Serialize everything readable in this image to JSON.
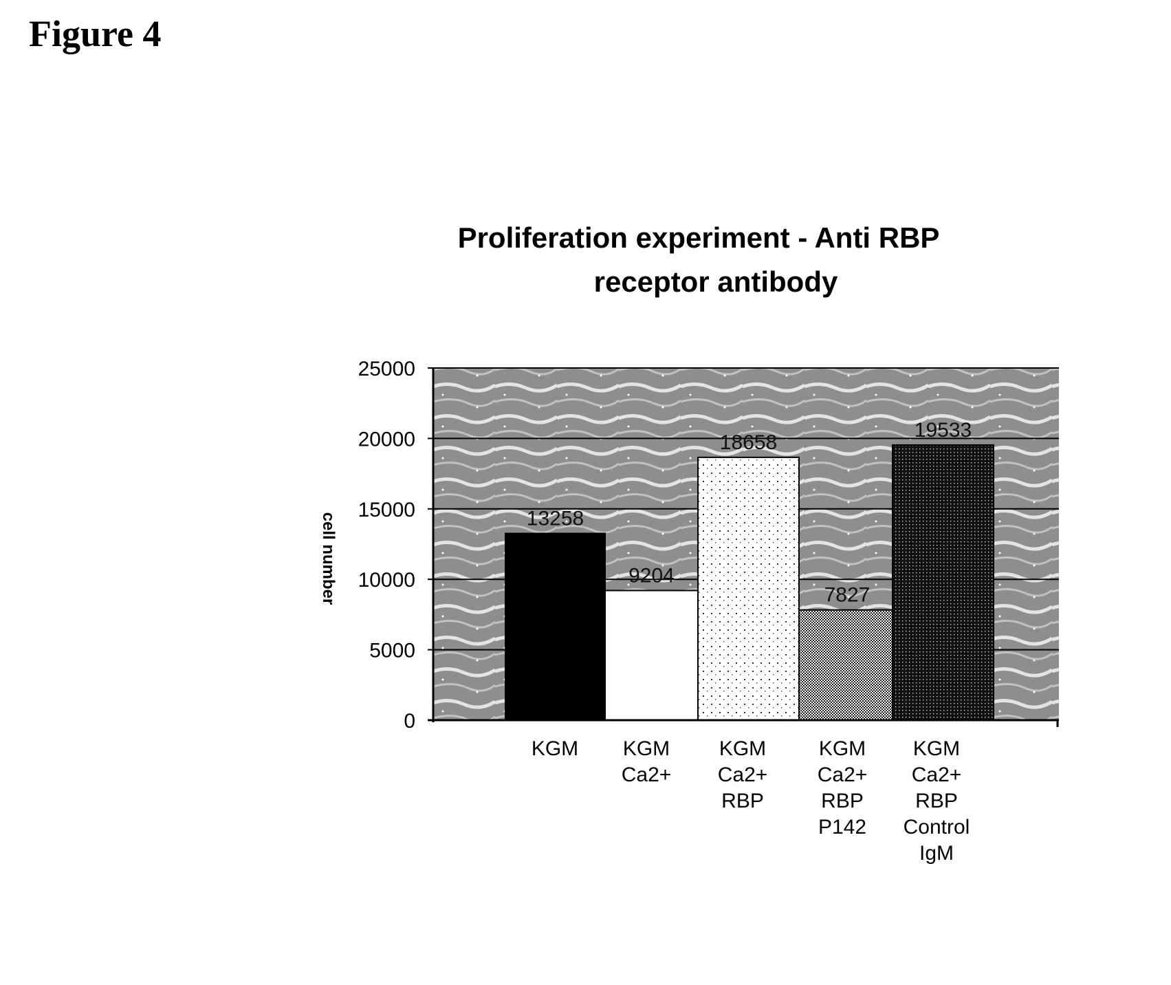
{
  "figure_label": "Figure 4",
  "chart_data": {
    "type": "bar",
    "title_lines": [
      "Proliferation experiment - Anti RBP",
      "receptor antibody"
    ],
    "ylabel": "cell number",
    "xlabel": "",
    "ylim": [
      0,
      25000
    ],
    "yticks": [
      0,
      5000,
      10000,
      15000,
      20000,
      25000
    ],
    "grid": true,
    "categories": [
      [
        "KGM"
      ],
      [
        "KGM",
        "Ca2+"
      ],
      [
        "KGM",
        "Ca2+",
        "RBP"
      ],
      [
        "KGM",
        "Ca2+",
        "RBP",
        "P142"
      ],
      [
        "KGM",
        "Ca2+",
        "RBP",
        "Control",
        "IgM"
      ]
    ],
    "values": [
      13258,
      9204,
      18658,
      7827,
      19533
    ],
    "data_labels": [
      "13258",
      "9204",
      "18658",
      "7827",
      "19533"
    ],
    "bar_fills": [
      "solid-black",
      "white",
      "sparse-dots",
      "fine-dots",
      "dense-dots"
    ],
    "colors": {
      "plot_background": "#9a9a9a",
      "axis": "#000000"
    }
  }
}
